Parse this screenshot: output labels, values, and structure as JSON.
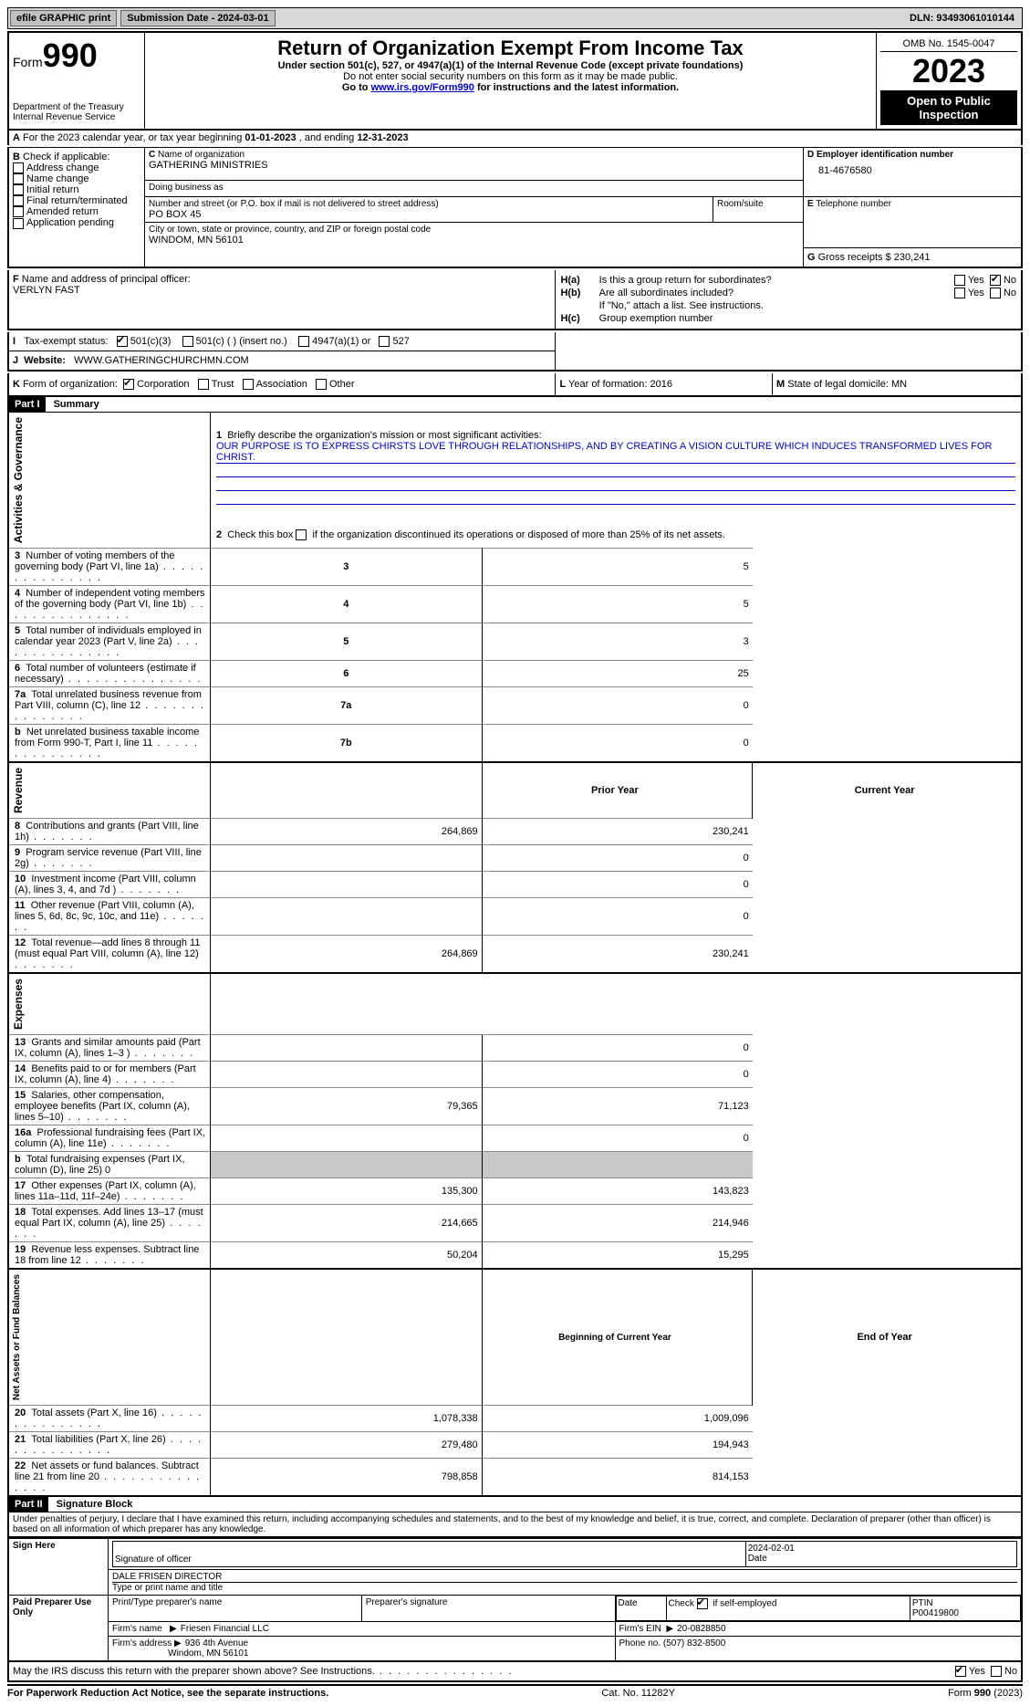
{
  "topbar": {
    "efile": "efile GRAPHIC print",
    "submission_label": "Submission Date - 2024-03-01",
    "dln": "DLN: 93493061010144"
  },
  "header": {
    "form_word": "Form",
    "form_num": "990",
    "dept": "Department of the Treasury",
    "irs": "Internal Revenue Service",
    "title": "Return of Organization Exempt From Income Tax",
    "sub1": "Under section 501(c), 527, or 4947(a)(1) of the Internal Revenue Code (except private foundations)",
    "sub2": "Do not enter social security numbers on this form as it may be made public.",
    "sub3_pre": "Go to ",
    "sub3_link": "www.irs.gov/Form990",
    "sub3_post": " for instructions and the latest information.",
    "omb": "OMB No. 1545-0047",
    "year": "2023",
    "open": "Open to Public Inspection"
  },
  "periodA": {
    "label_pre": "For the 2023 calendar year, or tax year beginning ",
    "begin": "01-01-2023",
    "mid": " , and ending ",
    "end": "12-31-2023"
  },
  "boxB": {
    "label": "Check if applicable:",
    "opts": [
      "Address change",
      "Name change",
      "Initial return",
      "Final return/terminated",
      "Amended return",
      "Application pending"
    ]
  },
  "boxC": {
    "name_label": "Name of organization",
    "name": "GATHERING MINISTRIES",
    "dba_label": "Doing business as",
    "street_label": "Number and street (or P.O. box if mail is not delivered to street address)",
    "street": "PO BOX 45",
    "room_label": "Room/suite",
    "city_label": "City or town, state or province, country, and ZIP or foreign postal code",
    "city": "WINDOM, MN  56101"
  },
  "boxD": {
    "label": "Employer identification number",
    "value": "81-4676580"
  },
  "boxE": {
    "label": "Telephone number"
  },
  "boxG": {
    "label": "Gross receipts $",
    "value": "230,241"
  },
  "boxF": {
    "label": "Name and address of principal officer:",
    "value": "VERLYN FAST"
  },
  "boxH": {
    "a_label": "Is this a group return for subordinates?",
    "b_label": "Are all subordinates included?",
    "b_note": "If \"No,\" attach a list. See instructions.",
    "c_label": "Group exemption number",
    "yes": "Yes",
    "no": "No"
  },
  "boxI": {
    "label": "Tax-exempt status:",
    "o1": "501(c)(3)",
    "o2": "501(c) (   ) (insert no.)",
    "o3": "4947(a)(1) or",
    "o4": "527"
  },
  "boxJ": {
    "label": "Website:",
    "value": "WWW.GATHERINGCHURCHMN.COM"
  },
  "boxK": {
    "label": "Form of organization:",
    "o1": "Corporation",
    "o2": "Trust",
    "o3": "Association",
    "o4": "Other"
  },
  "boxL": {
    "label": "Year of formation:",
    "value": "2016"
  },
  "boxM": {
    "label": "State of legal domicile:",
    "value": "MN"
  },
  "part1": {
    "hdr": "Part I",
    "title": "Summary",
    "l1_label": "Briefly describe the organization's mission or most significant activities:",
    "l1_text": "OUR PURPOSE IS TO EXPRESS CHIRSTS LOVE THROUGH RELATIONSHIPS, AND BY CREATING A VISION CULTURE WHICH INDUCES TRANSFORMED LIVES FOR CHRIST.",
    "l2": "Check this box       if the organization discontinued its operations or disposed of more than 25% of its net assets.",
    "side_gov": "Activities & Governance",
    "side_rev": "Revenue",
    "side_exp": "Expenses",
    "side_net": "Net Assets or Fund Balances",
    "prior": "Prior Year",
    "current": "Current Year",
    "begin": "Beginning of Current Year",
    "end": "End of Year",
    "rows_gov": [
      {
        "n": "3",
        "t": "Number of voting members of the governing body (Part VI, line 1a)",
        "b": "3",
        "v": "5"
      },
      {
        "n": "4",
        "t": "Number of independent voting members of the governing body (Part VI, line 1b)",
        "b": "4",
        "v": "5"
      },
      {
        "n": "5",
        "t": "Total number of individuals employed in calendar year 2023 (Part V, line 2a)",
        "b": "5",
        "v": "3"
      },
      {
        "n": "6",
        "t": "Total number of volunteers (estimate if necessary)",
        "b": "6",
        "v": "25"
      },
      {
        "n": "7a",
        "t": "Total unrelated business revenue from Part VIII, column (C), line 12",
        "b": "7a",
        "v": "0"
      },
      {
        "n": "b",
        "t": "Net unrelated business taxable income from Form 990-T, Part I, line 11",
        "b": "7b",
        "v": "0"
      }
    ],
    "rows_rev": [
      {
        "n": "8",
        "t": "Contributions and grants (Part VIII, line 1h)",
        "p": "264,869",
        "c": "230,241"
      },
      {
        "n": "9",
        "t": "Program service revenue (Part VIII, line 2g)",
        "p": "",
        "c": "0"
      },
      {
        "n": "10",
        "t": "Investment income (Part VIII, column (A), lines 3, 4, and 7d )",
        "p": "",
        "c": "0"
      },
      {
        "n": "11",
        "t": "Other revenue (Part VIII, column (A), lines 5, 6d, 8c, 9c, 10c, and 11e)",
        "p": "",
        "c": "0"
      },
      {
        "n": "12",
        "t": "Total revenue—add lines 8 through 11 (must equal Part VIII, column (A), line 12)",
        "p": "264,869",
        "c": "230,241"
      }
    ],
    "rows_exp": [
      {
        "n": "13",
        "t": "Grants and similar amounts paid (Part IX, column (A), lines 1–3 )",
        "p": "",
        "c": "0"
      },
      {
        "n": "14",
        "t": "Benefits paid to or for members (Part IX, column (A), line 4)",
        "p": "",
        "c": "0"
      },
      {
        "n": "15",
        "t": "Salaries, other compensation, employee benefits (Part IX, column (A), lines 5–10)",
        "p": "79,365",
        "c": "71,123"
      },
      {
        "n": "16a",
        "t": "Professional fundraising fees (Part IX, column (A), line 11e)",
        "p": "",
        "c": "0"
      },
      {
        "n": "b",
        "t": "Total fundraising expenses (Part IX, column (D), line 25) 0",
        "shade": true
      },
      {
        "n": "17",
        "t": "Other expenses (Part IX, column (A), lines 11a–11d, 11f–24e)",
        "p": "135,300",
        "c": "143,823"
      },
      {
        "n": "18",
        "t": "Total expenses. Add lines 13–17 (must equal Part IX, column (A), line 25)",
        "p": "214,665",
        "c": "214,946"
      },
      {
        "n": "19",
        "t": "Revenue less expenses. Subtract line 18 from line 12",
        "p": "50,204",
        "c": "15,295"
      }
    ],
    "rows_net": [
      {
        "n": "20",
        "t": "Total assets (Part X, line 16)",
        "p": "1,078,338",
        "c": "1,009,096"
      },
      {
        "n": "21",
        "t": "Total liabilities (Part X, line 26)",
        "p": "279,480",
        "c": "194,943"
      },
      {
        "n": "22",
        "t": "Net assets or fund balances. Subtract line 21 from line 20",
        "p": "798,858",
        "c": "814,153"
      }
    ]
  },
  "part2": {
    "hdr": "Part II",
    "title": "Signature Block",
    "decl": "Under penalties of perjury, I declare that I have examined this return, including accompanying schedules and statements, and to the best of my knowledge and belief, it is true, correct, and complete. Declaration of preparer (other than officer) is based on all information of which preparer has any knowledge.",
    "sign_here": "Sign Here",
    "sig_officer": "Signature of officer",
    "sig_date": "2024-02-01",
    "date_lbl": "Date",
    "officer_name": "DALE FRISEN  DIRECTOR",
    "type_name": "Type or print name and title",
    "paid": "Paid Preparer Use Only",
    "prep_name_lbl": "Print/Type preparer's name",
    "prep_sig_lbl": "Preparer's signature",
    "check_lbl": "Check         if self-employed",
    "ptin_lbl": "PTIN",
    "ptin": "P00419800",
    "firm_name_lbl": "Firm's name",
    "firm_name": "Friesen Financial LLC",
    "firm_ein_lbl": "Firm's EIN",
    "firm_ein": "20-0828850",
    "firm_addr_lbl": "Firm's address",
    "firm_addr1": "936 4th Avenue",
    "firm_addr2": "Windom, MN  56101",
    "phone_lbl": "Phone no.",
    "phone": "(507) 832-8500",
    "discuss": "May the IRS discuss this return with the preparer shown above? See Instructions."
  },
  "footer": {
    "pra": "For Paperwork Reduction Act Notice, see the separate instructions.",
    "cat": "Cat. No. 11282Y",
    "form": "Form 990 (2023)"
  }
}
